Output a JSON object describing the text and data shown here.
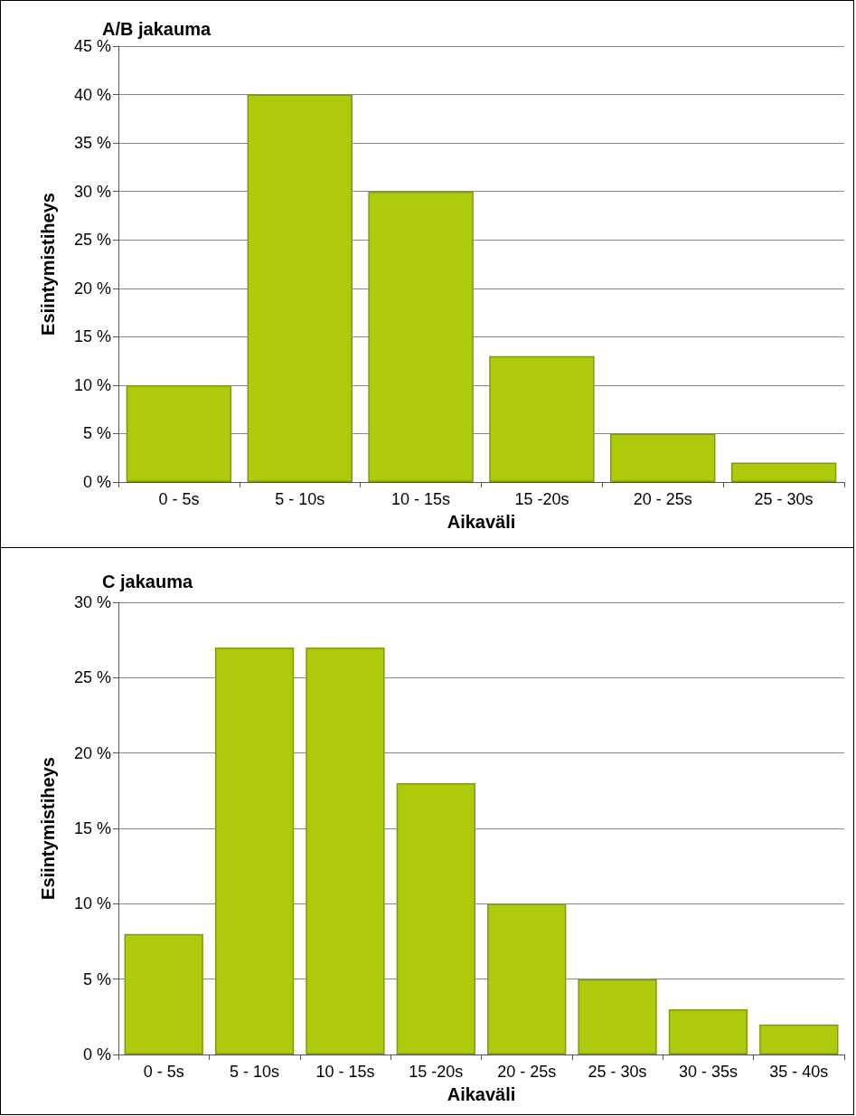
{
  "chart_data": [
    {
      "type": "bar",
      "title": "A/B jakauma",
      "xlabel": "Aikaväli",
      "ylabel": "Esiintymistiheys",
      "categories": [
        "0 - 5s",
        "5 - 10s",
        "10 - 15s",
        "15 -20s",
        "20 - 25s",
        "25 - 30s"
      ],
      "values": [
        10,
        40,
        30,
        13,
        5,
        2
      ],
      "color": "#afca0b",
      "ylim": [
        0,
        45
      ],
      "yticks": [
        {
          "value": 0,
          "label": "0 %"
        },
        {
          "value": 5,
          "label": "5 %"
        },
        {
          "value": 10,
          "label": "10 %"
        },
        {
          "value": 15,
          "label": "15 %"
        },
        {
          "value": 20,
          "label": "20 %"
        },
        {
          "value": 25,
          "label": "25 %"
        },
        {
          "value": 30,
          "label": "30 %"
        },
        {
          "value": 35,
          "label": "35 %"
        },
        {
          "value": 40,
          "label": "40 %"
        },
        {
          "value": 45,
          "label": "45 %"
        }
      ],
      "grid": "y"
    },
    {
      "type": "bar",
      "title": "C jakauma",
      "xlabel": "Aikaväli",
      "ylabel": "Esiintymistiheys",
      "categories": [
        "0 - 5s",
        "5 - 10s",
        "10 - 15s",
        "15 -20s",
        "20 - 25s",
        "25 - 30s",
        "30 - 35s",
        "35 - 40s"
      ],
      "values": [
        8,
        27,
        27,
        18,
        10,
        5,
        3,
        2
      ],
      "color": "#afca0b",
      "ylim": [
        0,
        30
      ],
      "yticks": [
        {
          "value": 0,
          "label": "0 %"
        },
        {
          "value": 5,
          "label": "5 %"
        },
        {
          "value": 10,
          "label": "10 %"
        },
        {
          "value": 15,
          "label": "15 %"
        },
        {
          "value": 20,
          "label": "20 %"
        },
        {
          "value": 25,
          "label": "25 %"
        },
        {
          "value": 30,
          "label": "30 %"
        }
      ],
      "grid": "y"
    }
  ]
}
